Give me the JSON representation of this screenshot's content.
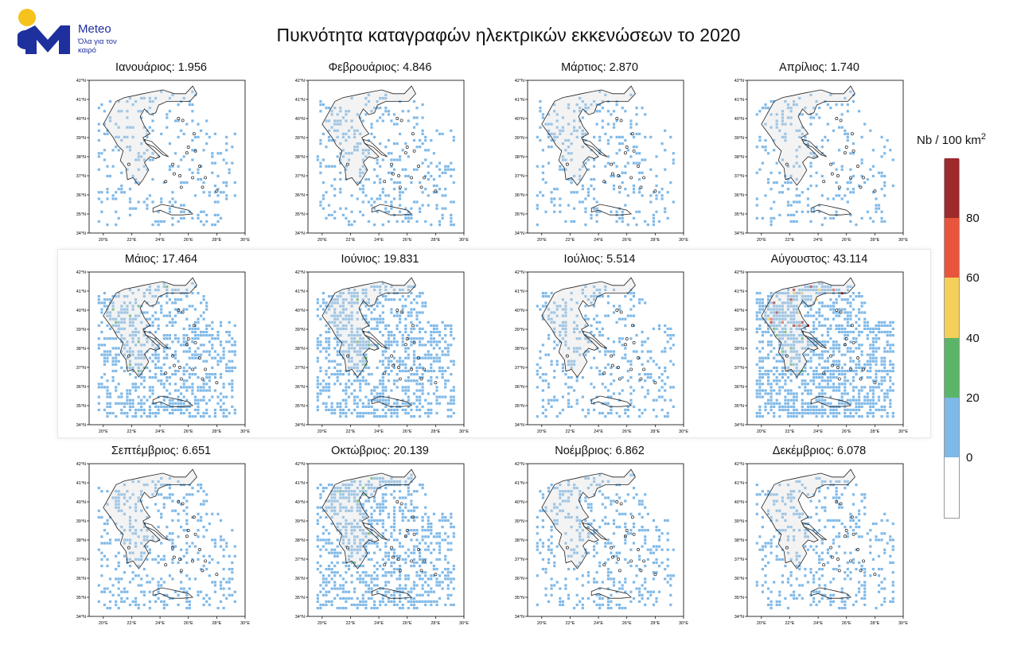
{
  "brand": {
    "name": "Meteo",
    "tagline": "Όλα για τον καιρό"
  },
  "title": "Πυκνότητα καταγραφών ηλεκτρικών εκκενώσεων το 2020",
  "axes": {
    "lat_labels": [
      "34°N",
      "35°N",
      "36°N",
      "37°N",
      "38°N",
      "39°N",
      "40°N",
      "41°N",
      "42°N"
    ],
    "lon_labels": [
      "20°E",
      "22°E",
      "24°E",
      "26°E",
      "28°E",
      "30°E"
    ],
    "lat_range": [
      34,
      42
    ],
    "lon_range": [
      19,
      30
    ]
  },
  "months": [
    {
      "label": "Ιανουάριος: 1.956"
    },
    {
      "label": "Φεβρουάριος: 4.846"
    },
    {
      "label": "Μάρτιος: 2.870"
    },
    {
      "label": "Απρίλιος: 1.740"
    },
    {
      "label": "Μάιος: 17.464"
    },
    {
      "label": "Ιούνιος: 19.831"
    },
    {
      "label": "Ιούλιος: 5.514"
    },
    {
      "label": "Αύγουστος: 43.114"
    },
    {
      "label": "Σεπτέμβριος: 6.651"
    },
    {
      "label": "Οκτώβριος: 20.139"
    },
    {
      "label": "Νοέμβριος: 6.862"
    },
    {
      "label": "Δεκέμβριος: 6.078"
    }
  ],
  "legend": {
    "title": "Nb / 100 km",
    "title_sup": "2",
    "ticks": [
      "0",
      "20",
      "40",
      "60",
      "80"
    ],
    "bins": [
      {
        "from": 0,
        "to": 20,
        "color": "#7fb9e8"
      },
      {
        "from": 20,
        "to": 40,
        "color": "#5cb468"
      },
      {
        "from": 40,
        "to": 60,
        "color": "#f4cf5a"
      },
      {
        "from": 60,
        "to": 80,
        "color": "#e8553c"
      },
      {
        "from": 80,
        "to": 100,
        "color": "#9e2a2b"
      }
    ]
  },
  "colors": {
    "land_outline": "#222222",
    "high_density_blue": "#7fb9e8"
  }
}
